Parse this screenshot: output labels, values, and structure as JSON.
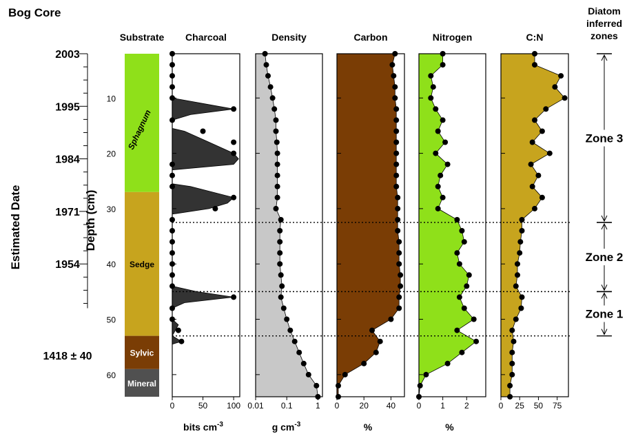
{
  "title": "Bog Core",
  "estimated_date_label": "Estimated Date",
  "depth_label": "Depth (cm)",
  "date_ticks": [
    {
      "label": "2003",
      "depth": 2
    },
    {
      "label": "1995",
      "depth": 11.5
    },
    {
      "label": "1984",
      "depth": 21
    },
    {
      "label": "1971",
      "depth": 30.5
    },
    {
      "label": "1954",
      "depth": 40
    },
    {
      "label": "1418 ± 40",
      "depth": 56.5
    }
  ],
  "depth_ticks": [
    10,
    20,
    30,
    40,
    50,
    60
  ],
  "depth_range": [
    2,
    64
  ],
  "substrate": {
    "title": "Substrate",
    "units": [
      {
        "label": "Sphagnum",
        "top": 2,
        "bottom": 27,
        "color": "#8fe01a",
        "italic": true
      },
      {
        "label": "Sedge",
        "top": 27,
        "bottom": 53,
        "color": "#c7a41e",
        "italic": false
      },
      {
        "label": "Sylvic",
        "top": 53,
        "bottom": 59,
        "color": "#7a3d05",
        "italic": false
      },
      {
        "label": "Mineral",
        "top": 59,
        "bottom": 64,
        "color": "#505050",
        "italic": false
      }
    ]
  },
  "zone_boundaries": [
    32.5,
    45,
    53
  ],
  "zones": {
    "title_lines": [
      "Diatom",
      "inferred",
      "zones"
    ],
    "items": [
      {
        "label": "Zone 3",
        "top": 2,
        "bottom": 32.5
      },
      {
        "label": "Zone 2",
        "top": 32.5,
        "bottom": 45
      },
      {
        "label": "Zone 1",
        "top": 45,
        "bottom": 53
      }
    ]
  },
  "colors": {
    "charcoal": "#333333",
    "density": "#c8c8c8",
    "carbon": "#7a3d05",
    "nitrogen": "#8fe01a",
    "cn": "#c7a41e"
  },
  "chart_data": [
    {
      "type": "area",
      "title": "Charcoal",
      "xlabel": "bits cm",
      "xlabel_sup": "-3",
      "color": "#333333",
      "xscale": "linear",
      "xlim": [
        0,
        110
      ],
      "xticks": [
        0,
        50,
        100
      ],
      "xtick_labels": [
        "0",
        "50",
        "100"
      ],
      "depth": [
        2,
        4,
        6,
        8,
        10,
        12,
        14,
        16,
        18,
        20,
        22,
        24,
        26,
        28,
        30,
        32,
        34,
        36,
        38,
        40,
        42,
        44,
        46,
        48,
        50,
        52,
        54
      ],
      "values": [
        0,
        0,
        0,
        0,
        0,
        100,
        0,
        50,
        100,
        100,
        0,
        0,
        0,
        100,
        70,
        0,
        0,
        0,
        0,
        0,
        0,
        0,
        100,
        0,
        0,
        10,
        15
      ],
      "curve": [
        [
          2,
          0
        ],
        [
          10,
          0
        ],
        [
          11,
          50
        ],
        [
          12,
          100
        ],
        [
          13,
          30
        ],
        [
          14,
          0
        ],
        [
          15.5,
          0
        ],
        [
          16,
          20
        ],
        [
          18,
          60
        ],
        [
          20,
          100
        ],
        [
          21,
          108
        ],
        [
          22,
          100
        ],
        [
          23,
          0
        ],
        [
          25.5,
          0
        ],
        [
          26,
          30
        ],
        [
          28,
          100
        ],
        [
          29,
          90
        ],
        [
          30,
          60
        ],
        [
          31,
          0
        ],
        [
          44,
          0
        ],
        [
          45,
          40
        ],
        [
          46,
          100
        ],
        [
          47,
          20
        ],
        [
          48,
          0
        ],
        [
          50,
          0
        ],
        [
          51,
          10
        ],
        [
          52,
          5
        ],
        [
          53,
          0
        ],
        [
          54,
          15
        ],
        [
          54.5,
          0
        ],
        [
          64,
          0
        ]
      ]
    },
    {
      "type": "area",
      "title": "Density",
      "xlabel": "g cm",
      "xlabel_sup": "-3",
      "color": "#c8c8c8",
      "xscale": "log",
      "xlim": [
        0.01,
        1.4
      ],
      "xticks": [
        0.01,
        0.1,
        1
      ],
      "xtick_labels": [
        "0.01",
        "0.1",
        "1"
      ],
      "depth": [
        2,
        4,
        6,
        8,
        10,
        12,
        14,
        16,
        18,
        20,
        22,
        24,
        26,
        28,
        30,
        32,
        34,
        36,
        38,
        40,
        42,
        44,
        46,
        48,
        50,
        52,
        54,
        56,
        58,
        60,
        62,
        64
      ],
      "values": [
        0.02,
        0.022,
        0.025,
        0.03,
        0.035,
        0.04,
        0.045,
        0.045,
        0.048,
        0.05,
        0.05,
        0.05,
        0.05,
        0.05,
        0.045,
        0.065,
        0.06,
        0.06,
        0.06,
        0.06,
        0.065,
        0.07,
        0.065,
        0.08,
        0.1,
        0.13,
        0.18,
        0.25,
        0.35,
        0.5,
        0.9,
        1.0
      ]
    },
    {
      "type": "area",
      "title": "Carbon",
      "xlabel": "%",
      "color": "#7a3d05",
      "xscale": "linear",
      "xlim": [
        0,
        50
      ],
      "xticks": [
        0,
        20,
        40
      ],
      "xtick_labels": [
        "0",
        "20",
        "40"
      ],
      "depth": [
        2,
        4,
        6,
        8,
        10,
        12,
        14,
        16,
        18,
        20,
        22,
        24,
        26,
        28,
        30,
        32,
        34,
        36,
        38,
        40,
        42,
        44,
        46,
        48,
        50,
        52,
        54,
        56,
        58,
        60,
        62,
        64
      ],
      "values": [
        43,
        41,
        42,
        43,
        43,
        44,
        44,
        44,
        44,
        44,
        44,
        44,
        44,
        45,
        45,
        45,
        45,
        46,
        46,
        46,
        47,
        47,
        46,
        46,
        40,
        26,
        32,
        29,
        20,
        6,
        1,
        1
      ]
    },
    {
      "type": "area",
      "title": "Nitrogen",
      "xlabel": "%",
      "color": "#8fe01a",
      "xscale": "linear",
      "xlim": [
        0,
        2.8
      ],
      "xticks": [
        0,
        1,
        2
      ],
      "xtick_labels": [
        "0",
        "1",
        "2"
      ],
      "depth": [
        2,
        4,
        6,
        8,
        10,
        12,
        14,
        16,
        18,
        20,
        22,
        24,
        26,
        28,
        30,
        32,
        34,
        36,
        38,
        40,
        42,
        44,
        46,
        48,
        50,
        52,
        54,
        56,
        58,
        60,
        62,
        64
      ],
      "values": [
        1.0,
        1.0,
        0.5,
        0.6,
        0.5,
        0.7,
        1.0,
        0.8,
        1.1,
        0.7,
        1.2,
        0.9,
        0.8,
        1.0,
        0.8,
        1.6,
        1.8,
        1.9,
        1.6,
        1.7,
        2.1,
        2.0,
        1.7,
        1.9,
        2.3,
        1.6,
        2.4,
        1.8,
        1.2,
        0.3,
        0.05,
        0.0
      ]
    },
    {
      "type": "area",
      "title": "C:N",
      "xlabel": "",
      "color": "#c7a41e",
      "xscale": "linear",
      "xlim": [
        0,
        90
      ],
      "xticks": [
        0,
        25,
        50,
        75
      ],
      "xtick_labels": [
        "0",
        "25",
        "50",
        "75"
      ],
      "depth": [
        2,
        4,
        6,
        8,
        10,
        12,
        14,
        16,
        18,
        20,
        22,
        24,
        26,
        28,
        30,
        32,
        34,
        36,
        38,
        40,
        42,
        44,
        46,
        48,
        50,
        52,
        54,
        56,
        58,
        60,
        62,
        64
      ],
      "values": [
        45,
        45,
        80,
        72,
        85,
        60,
        45,
        55,
        42,
        65,
        40,
        50,
        42,
        55,
        45,
        28,
        28,
        26,
        25,
        22,
        22,
        20,
        28,
        27,
        20,
        15,
        17,
        15,
        15,
        15,
        12,
        12
      ]
    }
  ]
}
